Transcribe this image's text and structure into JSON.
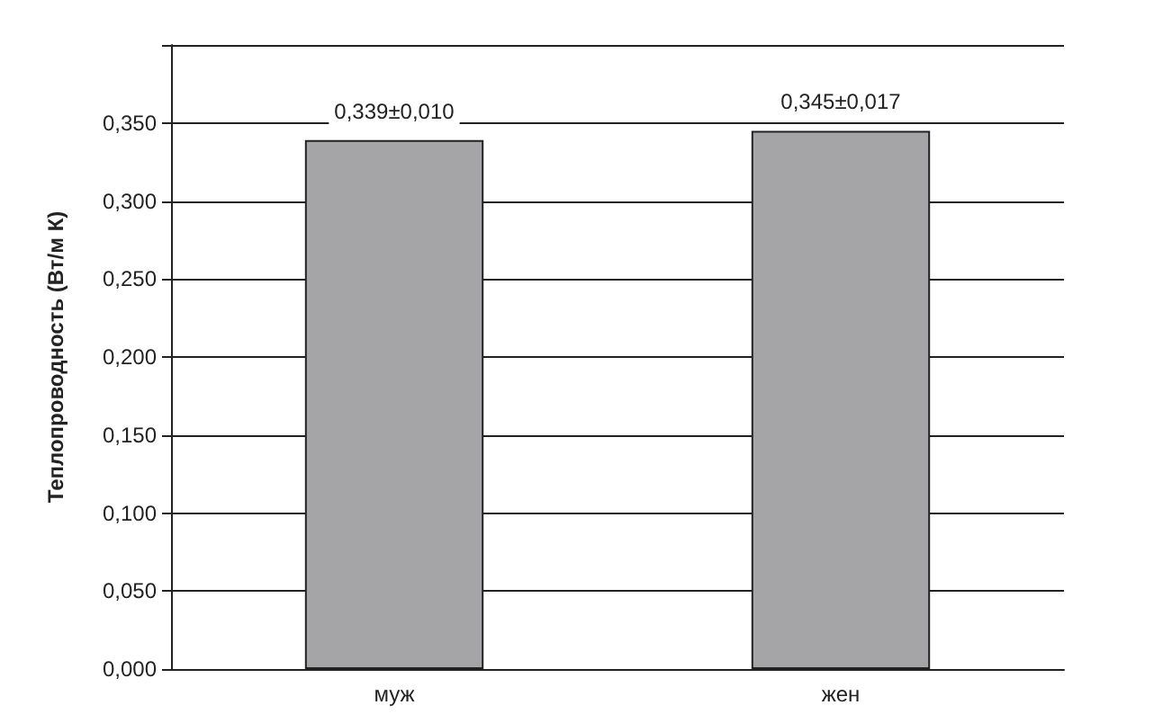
{
  "chart_data": {
    "type": "bar",
    "ylabel": "Теплопроводность (Вт/м К)",
    "categories": [
      "муж",
      "жен"
    ],
    "values": [
      0.339,
      0.345
    ],
    "value_labels": [
      "0,339±0,010",
      "0,345±0,017"
    ],
    "color": "#a5a5a8",
    "ylim": [
      0,
      0.4
    ],
    "yticks": [
      {
        "value": 0,
        "label": "0,000"
      },
      {
        "value": 0.05,
        "label": "0,050"
      },
      {
        "value": 0.1,
        "label": "0,100"
      },
      {
        "value": 0.15,
        "label": "0,150"
      },
      {
        "value": 0.2,
        "label": "0,200"
      },
      {
        "value": 0.25,
        "label": "0,250"
      },
      {
        "value": 0.3,
        "label": "0,300"
      },
      {
        "value": 0.35,
        "label": "0,350"
      },
      {
        "value": 0.4,
        "label": null
      }
    ],
    "grid": "y"
  }
}
